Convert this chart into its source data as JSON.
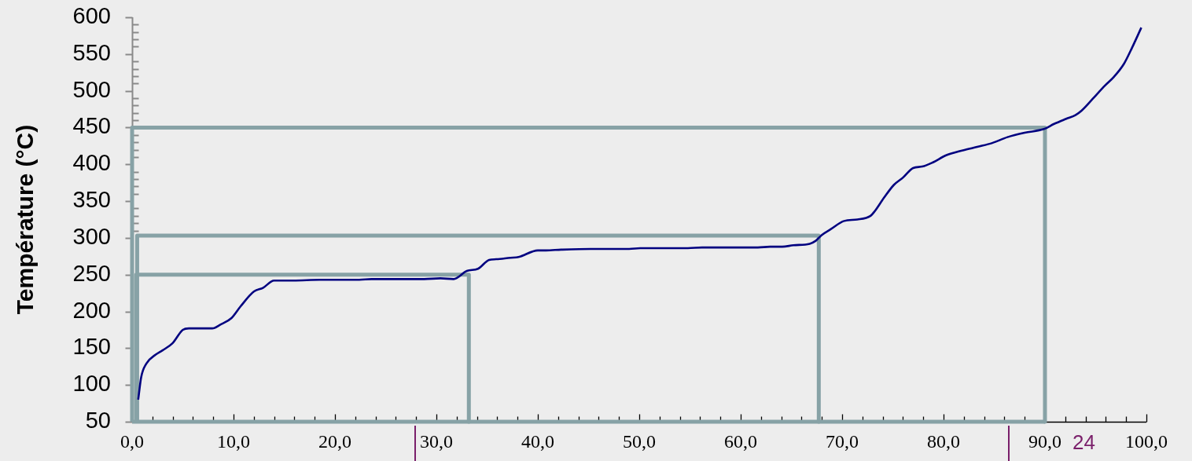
{
  "chart_data": {
    "type": "line",
    "ylabel": "Température (°C)",
    "xlim": [
      0,
      100
    ],
    "ylim": [
      50,
      600
    ],
    "xticks": [
      {
        "value": 0,
        "label": "0,0"
      },
      {
        "value": 2,
        "label": null
      },
      {
        "value": 4,
        "label": null
      },
      {
        "value": 6,
        "label": null
      },
      {
        "value": 8,
        "label": null
      },
      {
        "value": 10,
        "label": "10,0"
      },
      {
        "value": 12,
        "label": null
      },
      {
        "value": 14,
        "label": null
      },
      {
        "value": 16,
        "label": null
      },
      {
        "value": 18,
        "label": null
      },
      {
        "value": 20,
        "label": "20,0"
      },
      {
        "value": 22,
        "label": null
      },
      {
        "value": 24,
        "label": null
      },
      {
        "value": 26,
        "label": null
      },
      {
        "value": 28,
        "label": null
      },
      {
        "value": 30,
        "label": "30,0"
      },
      {
        "value": 32,
        "label": null
      },
      {
        "value": 34,
        "label": null
      },
      {
        "value": 36,
        "label": null
      },
      {
        "value": 38,
        "label": null
      },
      {
        "value": 40,
        "label": "40,0"
      },
      {
        "value": 42,
        "label": null
      },
      {
        "value": 44,
        "label": null
      },
      {
        "value": 46,
        "label": null
      },
      {
        "value": 48,
        "label": null
      },
      {
        "value": 50,
        "label": "50,0"
      },
      {
        "value": 52,
        "label": null
      },
      {
        "value": 54,
        "label": null
      },
      {
        "value": 56,
        "label": null
      },
      {
        "value": 58,
        "label": null
      },
      {
        "value": 60,
        "label": "60,0"
      },
      {
        "value": 62,
        "label": null
      },
      {
        "value": 64,
        "label": null
      },
      {
        "value": 66,
        "label": null
      },
      {
        "value": 68,
        "label": null
      },
      {
        "value": 70,
        "label": "70,0"
      },
      {
        "value": 72,
        "label": null
      },
      {
        "value": 74,
        "label": null
      },
      {
        "value": 76,
        "label": null
      },
      {
        "value": 78,
        "label": null
      },
      {
        "value": 80,
        "label": "80,0"
      },
      {
        "value": 82,
        "label": null
      },
      {
        "value": 84,
        "label": null
      },
      {
        "value": 86,
        "label": null
      },
      {
        "value": 88,
        "label": null
      },
      {
        "value": 90,
        "label": "90,0"
      },
      {
        "value": 92,
        "label": null
      },
      {
        "value": 94,
        "label": null
      },
      {
        "value": 96,
        "label": null
      },
      {
        "value": 98,
        "label": null
      },
      {
        "value": 100,
        "label": "100,0"
      }
    ],
    "yticks": [
      50,
      100,
      150,
      200,
      250,
      300,
      {
        "value": 310,
        "label": null
      },
      {
        "value": 320,
        "label": null
      },
      {
        "value": 330,
        "label": null
      },
      {
        "value": 340,
        "label": null
      },
      350,
      {
        "value": 360,
        "label": null
      },
      {
        "value": 370,
        "label": null
      },
      {
        "value": 380,
        "label": null
      },
      {
        "value": 390,
        "label": null
      },
      400,
      {
        "value": 410,
        "label": null
      },
      {
        "value": 420,
        "label": null
      },
      {
        "value": 430,
        "label": null
      },
      {
        "value": 440,
        "label": null
      },
      450,
      {
        "value": 460,
        "label": null
      },
      {
        "value": 470,
        "label": null
      },
      {
        "value": 480,
        "label": null
      },
      {
        "value": 490,
        "label": null
      },
      500,
      {
        "value": 510,
        "label": null
      },
      {
        "value": 520,
        "label": null
      },
      {
        "value": 530,
        "label": null
      },
      {
        "value": 540,
        "label": null
      },
      550,
      {
        "value": 560,
        "label": null
      },
      {
        "value": 570,
        "label": null
      },
      {
        "value": 580,
        "label": null
      },
      {
        "value": 590,
        "label": null
      },
      600
    ],
    "series": [
      {
        "color": "#000080",
        "x": [
          0.6,
          0.9,
          1.4,
          2.3,
          3.0,
          4.0,
          5.0,
          5.6,
          7.9,
          8.7,
          9.8,
          10.7,
          12.0,
          12.9,
          14.0,
          15.9,
          18.5,
          22.4,
          23.6,
          28.8,
          30.4,
          31.7,
          33.0,
          34.1,
          35.2,
          35.9,
          37.3,
          38.1,
          40.0,
          40.8,
          42.3,
          45.2,
          49.0,
          50.1,
          54.8,
          56.2,
          61.7,
          62.9,
          64.1,
          65.2,
          66.8,
          67.4,
          68.0,
          68.9,
          70.2,
          71.5,
          72.8,
          73.2,
          74.1,
          75.1,
          76.0,
          77.0,
          77.9,
          79.0,
          80.2,
          81.9,
          83.4,
          84.8,
          86.3,
          88.0,
          89.9,
          90.9,
          92.1,
          93.0,
          93.6,
          94.7,
          95.9,
          96.8,
          97.8,
          98.6,
          99.5
        ],
        "values": [
          80,
          111,
          129,
          141,
          147,
          157,
          175,
          177,
          177,
          182,
          191,
          207,
          227,
          232,
          242,
          242,
          243,
          243,
          244,
          244,
          245,
          244,
          255,
          258,
          270,
          271,
          273,
          274,
          283,
          283,
          284,
          285,
          285,
          286,
          286,
          287,
          287,
          288,
          288,
          290,
          292,
          296,
          304,
          312,
          323,
          325,
          330,
          336,
          354,
          372,
          382,
          395,
          397,
          403,
          412,
          419,
          424,
          429,
          437,
          443,
          448,
          455,
          462,
          467,
          473,
          489,
          507,
          519,
          537,
          559,
          586
        ]
      },
      {
        "color": "#87a2a6",
        "x": [
          0.4,
          0.4,
          33.2,
          33.2
        ],
        "values": [
          50,
          250,
          250,
          50
        ]
      },
      {
        "color": "#87a2a6",
        "x": [
          0.5,
          0.5,
          67.7,
          67.7
        ],
        "values": [
          50,
          303,
          303,
          50
        ]
      },
      {
        "color": "#87a2a6",
        "x": [
          0,
          0,
          90,
          90
        ],
        "values": [
          50,
          450,
          450,
          50
        ]
      },
      {
        "color": "#87a2a6",
        "x": [
          0,
          90
        ],
        "values": [
          50,
          50
        ]
      }
    ],
    "annotations": [
      "24"
    ]
  }
}
